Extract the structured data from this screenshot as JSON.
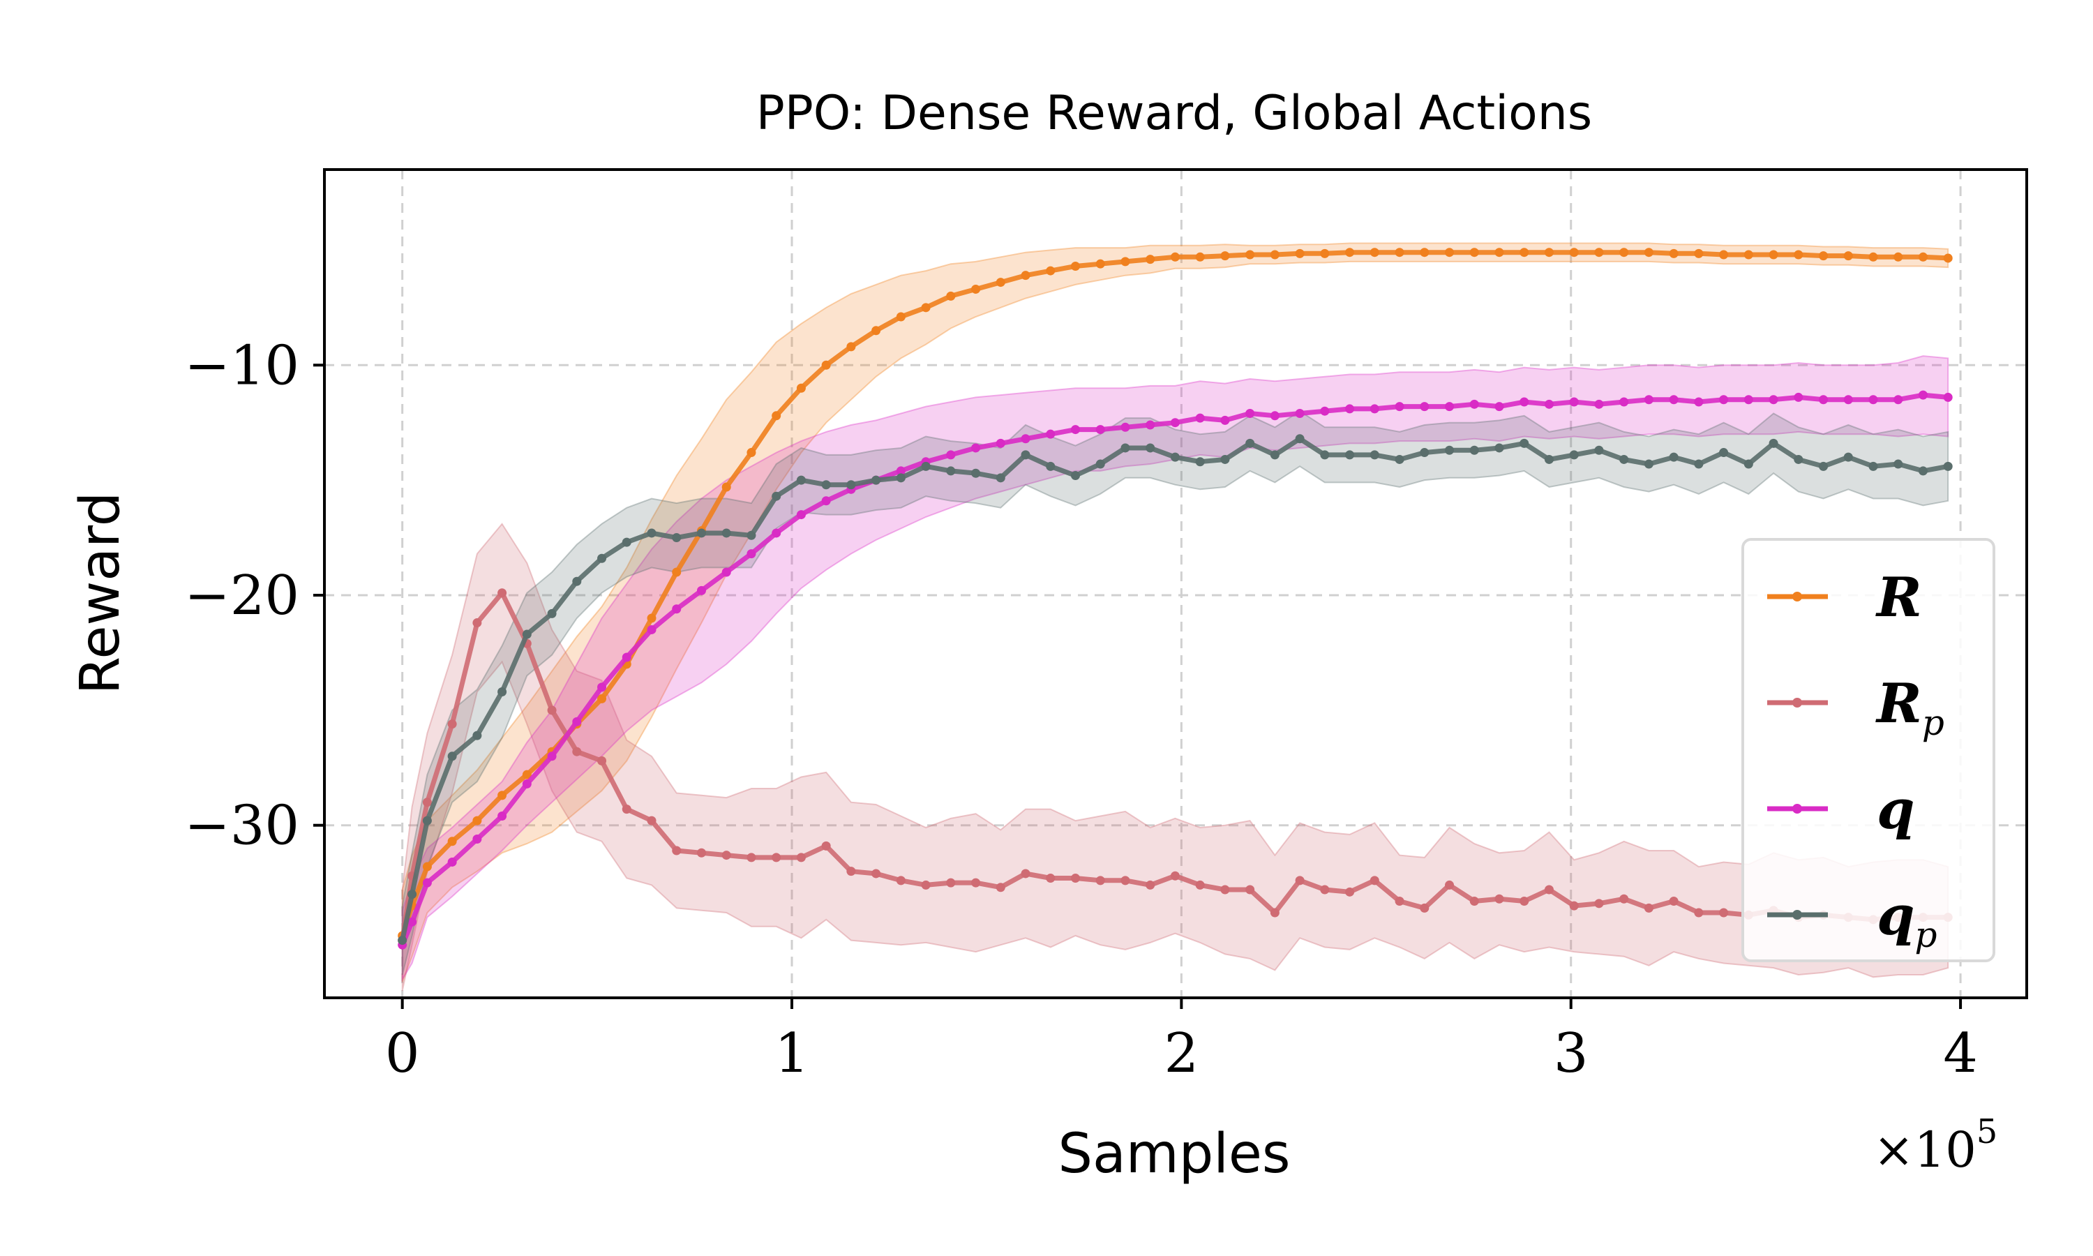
{
  "chart_data": {
    "type": "line",
    "title": "PPO: Dense Reward, Global Actions",
    "xlabel": "Samples",
    "ylabel": "Reward",
    "x_multiplier_label": "×10",
    "x_multiplier_exp": "5",
    "xlim": [
      -0.2,
      4.17
    ],
    "ylim": [
      -37.5,
      -1.5
    ],
    "xticks": [
      0,
      1,
      2,
      3,
      4
    ],
    "xtick_labels": [
      "0",
      "1",
      "2",
      "3",
      "4"
    ],
    "yticks": [
      -10,
      -20,
      -30
    ],
    "ytick_labels": [
      "−10",
      "−20",
      "−30"
    ],
    "grid": true,
    "legend_position": "center-right",
    "x": [
      0,
      0.025,
      0.064,
      0.128,
      0.192,
      0.256,
      0.32,
      0.384,
      0.448,
      0.512,
      0.576,
      0.64,
      0.704,
      0.768,
      0.832,
      0.896,
      0.96,
      1.024,
      1.088,
      1.152,
      1.216,
      1.28,
      1.344,
      1.408,
      1.472,
      1.536,
      1.6,
      1.664,
      1.728,
      1.792,
      1.856,
      1.92,
      1.984,
      2.048,
      2.112,
      2.176,
      2.24,
      2.304,
      2.368,
      2.432,
      2.496,
      2.56,
      2.624,
      2.688,
      2.752,
      2.816,
      2.88,
      2.944,
      3.008,
      3.072,
      3.136,
      3.2,
      3.264,
      3.328,
      3.392,
      3.456,
      3.52,
      3.584,
      3.648,
      3.712,
      3.776,
      3.84,
      3.904,
      3.968
    ],
    "series": [
      {
        "name": "R",
        "sub": "",
        "color": "#f0801e",
        "values": [
          -34.8,
          -33.5,
          -31.8,
          -30.7,
          -29.8,
          -28.7,
          -27.8,
          -26.8,
          -25.6,
          -24.5,
          -23.0,
          -21.0,
          -19.0,
          -17.2,
          -15.3,
          -13.8,
          -12.2,
          -11.0,
          -10.0,
          -9.2,
          -8.5,
          -7.9,
          -7.5,
          -7.0,
          -6.7,
          -6.4,
          -6.1,
          -5.9,
          -5.7,
          -5.6,
          -5.5,
          -5.4,
          -5.3,
          -5.3,
          -5.25,
          -5.2,
          -5.2,
          -5.15,
          -5.15,
          -5.1,
          -5.1,
          -5.1,
          -5.1,
          -5.1,
          -5.1,
          -5.1,
          -5.1,
          -5.1,
          -5.1,
          -5.1,
          -5.1,
          -5.1,
          -5.15,
          -5.15,
          -5.2,
          -5.2,
          -5.2,
          -5.2,
          -5.25,
          -5.25,
          -5.3,
          -5.3,
          -5.3,
          -5.35
        ],
        "band": [
          2.0,
          2.2,
          2.0,
          2.0,
          2.2,
          2.5,
          3.0,
          3.5,
          3.8,
          4.0,
          4.2,
          4.3,
          4.2,
          4.0,
          3.8,
          3.5,
          3.2,
          2.8,
          2.5,
          2.3,
          2.0,
          1.8,
          1.6,
          1.4,
          1.2,
          1.1,
          1.0,
          0.9,
          0.8,
          0.7,
          0.6,
          0.6,
          0.5,
          0.5,
          0.5,
          0.4,
          0.4,
          0.4,
          0.4,
          0.4,
          0.4,
          0.4,
          0.4,
          0.4,
          0.4,
          0.4,
          0.4,
          0.4,
          0.4,
          0.4,
          0.4,
          0.4,
          0.4,
          0.4,
          0.4,
          0.4,
          0.4,
          0.4,
          0.4,
          0.4,
          0.4,
          0.4,
          0.4,
          0.4
        ]
      },
      {
        "name": "R",
        "sub": "p",
        "color": "#cf6b73",
        "values": [
          -35.0,
          -32.2,
          -29.0,
          -25.6,
          -21.2,
          -19.9,
          -22.1,
          -25.0,
          -26.8,
          -27.2,
          -29.3,
          -29.8,
          -31.1,
          -31.2,
          -31.3,
          -31.4,
          -31.4,
          -31.4,
          -30.9,
          -32.0,
          -32.1,
          -32.4,
          -32.6,
          -32.5,
          -32.5,
          -32.7,
          -32.1,
          -32.3,
          -32.3,
          -32.4,
          -32.4,
          -32.6,
          -32.2,
          -32.6,
          -32.8,
          -32.8,
          -33.8,
          -32.4,
          -32.8,
          -32.9,
          -32.4,
          -33.3,
          -33.6,
          -32.6,
          -33.3,
          -33.2,
          -33.3,
          -32.8,
          -33.5,
          -33.4,
          -33.2,
          -33.6,
          -33.3,
          -33.8,
          -33.8,
          -33.9,
          -33.7,
          -34.0,
          -33.9,
          -34.0,
          -34.1,
          -34.0,
          -34.0,
          -34.0
        ],
        "band": [
          2.2,
          3.0,
          3.0,
          3.0,
          3.0,
          3.0,
          3.5,
          3.5,
          3.5,
          3.5,
          3.0,
          2.8,
          2.5,
          2.5,
          2.5,
          3.0,
          3.0,
          3.5,
          3.2,
          3.0,
          3.0,
          2.8,
          2.5,
          2.8,
          3.0,
          2.5,
          2.8,
          3.0,
          2.5,
          2.8,
          3.0,
          2.5,
          2.5,
          2.5,
          2.8,
          3.0,
          2.5,
          2.5,
          2.5,
          2.5,
          2.5,
          2.0,
          2.2,
          2.5,
          2.5,
          2.0,
          2.2,
          2.5,
          2.0,
          2.2,
          2.5,
          2.5,
          2.2,
          2.0,
          2.2,
          2.2,
          2.5,
          2.5,
          2.5,
          2.2,
          2.5,
          2.5,
          2.5,
          2.2
        ]
      },
      {
        "name": "q",
        "sub": "",
        "color": "#d92bc5",
        "values": [
          -35.2,
          -34.2,
          -32.5,
          -31.6,
          -30.6,
          -29.6,
          -28.2,
          -27.0,
          -25.5,
          -24.0,
          -22.7,
          -21.5,
          -20.6,
          -19.8,
          -19.0,
          -18.2,
          -17.3,
          -16.5,
          -15.9,
          -15.4,
          -15.0,
          -14.6,
          -14.2,
          -13.9,
          -13.6,
          -13.4,
          -13.2,
          -13.0,
          -12.8,
          -12.8,
          -12.7,
          -12.6,
          -12.5,
          -12.3,
          -12.4,
          -12.1,
          -12.2,
          -12.1,
          -12.0,
          -11.9,
          -11.9,
          -11.8,
          -11.8,
          -11.8,
          -11.7,
          -11.8,
          -11.6,
          -11.7,
          -11.6,
          -11.7,
          -11.6,
          -11.5,
          -11.5,
          -11.6,
          -11.5,
          -11.5,
          -11.5,
          -11.4,
          -11.5,
          -11.5,
          -11.5,
          -11.5,
          -11.3,
          -11.4
        ],
        "band": [
          1.5,
          1.8,
          1.5,
          1.5,
          1.5,
          1.5,
          1.8,
          2.0,
          2.5,
          3.0,
          3.2,
          3.5,
          3.8,
          4.0,
          4.0,
          3.8,
          3.5,
          3.2,
          3.0,
          2.8,
          2.6,
          2.5,
          2.4,
          2.3,
          2.2,
          2.1,
          2.0,
          1.9,
          1.8,
          1.8,
          1.7,
          1.7,
          1.6,
          1.6,
          1.6,
          1.5,
          1.5,
          1.5,
          1.5,
          1.5,
          1.5,
          1.5,
          1.5,
          1.5,
          1.5,
          1.5,
          1.5,
          1.5,
          1.5,
          1.5,
          1.5,
          1.5,
          1.5,
          1.5,
          1.5,
          1.5,
          1.5,
          1.5,
          1.5,
          1.5,
          1.5,
          1.6,
          1.7,
          1.7
        ]
      },
      {
        "name": "q",
        "sub": "p",
        "color": "#5a6e6c",
        "values": [
          -35.0,
          -33.0,
          -29.8,
          -27.0,
          -26.1,
          -24.2,
          -21.7,
          -20.8,
          -19.4,
          -18.4,
          -17.7,
          -17.3,
          -17.5,
          -17.3,
          -17.3,
          -17.4,
          -15.7,
          -15.0,
          -15.2,
          -15.2,
          -15.0,
          -14.9,
          -14.4,
          -14.6,
          -14.7,
          -14.9,
          -13.9,
          -14.4,
          -14.8,
          -14.3,
          -13.6,
          -13.6,
          -14.0,
          -14.2,
          -14.1,
          -13.4,
          -13.9,
          -13.2,
          -13.9,
          -13.9,
          -13.9,
          -14.1,
          -13.8,
          -13.7,
          -13.7,
          -13.6,
          -13.4,
          -14.1,
          -13.9,
          -13.7,
          -14.1,
          -14.3,
          -14.0,
          -14.3,
          -13.8,
          -14.3,
          -13.4,
          -14.1,
          -14.4,
          -14.0,
          -14.4,
          -14.3,
          -14.6,
          -14.4
        ],
        "band": [
          1.5,
          1.8,
          2.0,
          2.0,
          2.0,
          2.0,
          1.8,
          1.8,
          1.6,
          1.5,
          1.5,
          1.5,
          1.5,
          1.5,
          1.5,
          1.4,
          1.4,
          1.4,
          1.3,
          1.3,
          1.3,
          1.3,
          1.3,
          1.3,
          1.3,
          1.3,
          1.3,
          1.3,
          1.3,
          1.3,
          1.3,
          1.3,
          1.2,
          1.2,
          1.2,
          1.2,
          1.2,
          1.2,
          1.2,
          1.2,
          1.2,
          1.2,
          1.2,
          1.2,
          1.2,
          1.2,
          1.2,
          1.2,
          1.2,
          1.2,
          1.2,
          1.2,
          1.2,
          1.3,
          1.3,
          1.3,
          1.3,
          1.4,
          1.4,
          1.4,
          1.4,
          1.5,
          1.5,
          1.5
        ]
      }
    ]
  }
}
